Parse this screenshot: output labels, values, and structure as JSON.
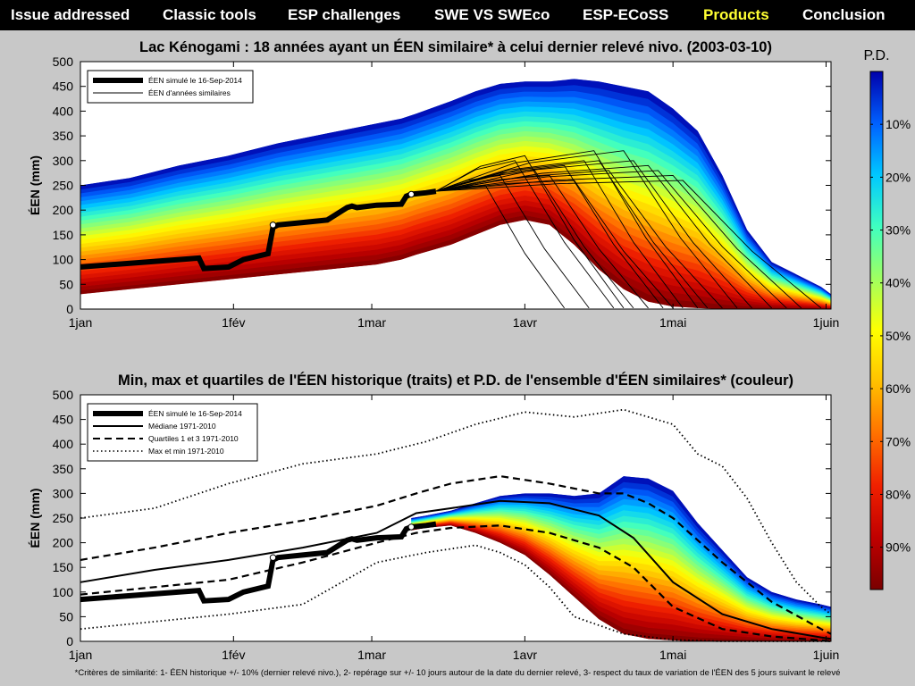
{
  "nav": {
    "items": [
      {
        "label": "Issue addressed"
      },
      {
        "label": "Classic tools"
      },
      {
        "label": "ESP challenges"
      },
      {
        "label": "SWE VS SWEco"
      },
      {
        "label": "ESP-ECoSS"
      },
      {
        "label": "Products"
      },
      {
        "label": "Conclusion"
      }
    ],
    "active_color": "#ffff33",
    "text_color": "#ffffff"
  },
  "footnote": "*Critères de similarité: 1- ÉEN historique +/- 10% (dernier relevé nivo.), 2- repérage sur +/- 10 jours autour de la date du dernier relevé, 3- respect du taux de variation de l'ÉEN des 5 jours suivant le relevé",
  "colorbar": {
    "title": "P.D.",
    "ticks": [
      "10%",
      "20%",
      "30%",
      "40%",
      "50%",
      "60%",
      "70%",
      "80%",
      "90%"
    ],
    "colors": [
      "#0000aa",
      "#0060ff",
      "#00c8ff",
      "#40ffc0",
      "#a0ff60",
      "#ffff00",
      "#ffc000",
      "#ff7000",
      "#f02000",
      "#c00000",
      "#7a0000"
    ]
  },
  "chart_data": [
    {
      "type": "area",
      "title": "Lac Kénogami : 18 années ayant un ÉEN similaire* à celui dernier relevé nivo. (2003-03-10)",
      "ylabel": "ÉEN (mm)",
      "xlabel": "",
      "ylim": [
        0,
        500
      ],
      "yticks": [
        0,
        50,
        100,
        150,
        200,
        250,
        300,
        350,
        400,
        450,
        500
      ],
      "xlim": [
        0,
        152
      ],
      "xticks": [
        {
          "d": 0,
          "label": "1jan"
        },
        {
          "d": 31,
          "label": "1fév"
        },
        {
          "d": 59,
          "label": "1mar"
        },
        {
          "d": 90,
          "label": "1avr"
        },
        {
          "d": 120,
          "label": "1mai"
        },
        {
          "d": 151,
          "label": "1juin"
        }
      ],
      "grid": false,
      "legend": {
        "position": "top-left",
        "entries": [
          "ÉEN simulé le 16-Sep-2014",
          "ÉEN d'années similaires"
        ]
      },
      "band_envelope": {
        "x": [
          0,
          10,
          20,
          30,
          40,
          50,
          60,
          65,
          68,
          75,
          80,
          85,
          90,
          95,
          100,
          105,
          110,
          115,
          120,
          125,
          130,
          135,
          140,
          145,
          150,
          152
        ],
        "low": [
          30,
          40,
          50,
          60,
          70,
          80,
          90,
          100,
          110,
          130,
          150,
          170,
          180,
          170,
          130,
          80,
          40,
          15,
          5,
          2,
          0,
          0,
          0,
          0,
          0,
          0
        ],
        "high": [
          250,
          265,
          290,
          310,
          335,
          355,
          375,
          385,
          395,
          420,
          440,
          455,
          460,
          460,
          465,
          460,
          450,
          440,
          405,
          360,
          270,
          160,
          95,
          70,
          45,
          30
        ]
      },
      "simulated": {
        "x": [
          0,
          20,
          24,
          25,
          30,
          33,
          38,
          39,
          40,
          45,
          50,
          54,
          55,
          56,
          60,
          65,
          66,
          67,
          70,
          72
        ],
        "y": [
          85,
          100,
          103,
          82,
          85,
          100,
          112,
          165,
          170,
          175,
          180,
          205,
          208,
          205,
          210,
          212,
          228,
          232,
          235,
          238
        ],
        "markers": [
          {
            "x": 39,
            "y": 170
          },
          {
            "x": 67,
            "y": 232
          }
        ]
      },
      "similar_years": [
        {
          "peak_x": 82,
          "peak_y": 250,
          "end_x": 98
        },
        {
          "peak_x": 85,
          "peak_y": 270,
          "end_x": 103
        },
        {
          "peak_x": 88,
          "peak_y": 300,
          "end_x": 108
        },
        {
          "peak_x": 90,
          "peak_y": 310,
          "end_x": 110
        },
        {
          "peak_x": 92,
          "peak_y": 280,
          "end_x": 112
        },
        {
          "peak_x": 95,
          "peak_y": 270,
          "end_x": 115
        },
        {
          "peak_x": 98,
          "peak_y": 290,
          "end_x": 118
        },
        {
          "peak_x": 100,
          "peak_y": 260,
          "end_x": 120
        },
        {
          "peak_x": 102,
          "peak_y": 300,
          "end_x": 122
        },
        {
          "peak_x": 104,
          "peak_y": 320,
          "end_x": 125
        },
        {
          "peak_x": 105,
          "peak_y": 300,
          "end_x": 127
        },
        {
          "peak_x": 107,
          "peak_y": 280,
          "end_x": 130
        },
        {
          "peak_x": 110,
          "peak_y": 320,
          "end_x": 133
        },
        {
          "peak_x": 112,
          "peak_y": 300,
          "end_x": 136
        },
        {
          "peak_x": 115,
          "peak_y": 290,
          "end_x": 140
        },
        {
          "peak_x": 117,
          "peak_y": 280,
          "end_x": 143
        },
        {
          "peak_x": 120,
          "peak_y": 270,
          "end_x": 146
        },
        {
          "peak_x": 122,
          "peak_y": 260,
          "end_x": 150
        }
      ]
    },
    {
      "type": "area",
      "title": "Min, max et quartiles de l'ÉEN historique (traits) et P.D. de l'ensemble d'ÉEN similaires* (couleur)",
      "ylabel": "ÉEN (mm)",
      "xlabel": "",
      "ylim": [
        0,
        500
      ],
      "yticks": [
        0,
        50,
        100,
        150,
        200,
        250,
        300,
        350,
        400,
        450,
        500
      ],
      "xlim": [
        0,
        152
      ],
      "xticks": [
        {
          "d": 0,
          "label": "1jan"
        },
        {
          "d": 31,
          "label": "1fév"
        },
        {
          "d": 59,
          "label": "1mar"
        },
        {
          "d": 90,
          "label": "1avr"
        },
        {
          "d": 120,
          "label": "1mai"
        },
        {
          "d": 151,
          "label": "1juin"
        }
      ],
      "grid": false,
      "legend": {
        "position": "top-left",
        "entries": [
          "ÉEN simulé le 16-Sep-2014",
          "Médiane 1971-2010",
          "Quartiles 1 et 3 1971-2010",
          "Max et min 1971-2010"
        ]
      },
      "band_envelope": {
        "x": [
          67,
          70,
          75,
          80,
          85,
          90,
          95,
          100,
          105,
          110,
          115,
          120,
          125,
          130,
          135,
          140,
          145,
          150,
          152
        ],
        "low": [
          225,
          230,
          235,
          220,
          200,
          175,
          135,
          90,
          45,
          15,
          5,
          2,
          0,
          0,
          0,
          0,
          0,
          0,
          0
        ],
        "high": [
          250,
          255,
          265,
          280,
          295,
          300,
          300,
          295,
          300,
          335,
          330,
          305,
          240,
          185,
          130,
          100,
          85,
          75,
          70
        ]
      },
      "simulated": {
        "x": [
          0,
          20,
          24,
          25,
          30,
          33,
          38,
          39,
          40,
          45,
          50,
          54,
          55,
          56,
          60,
          65,
          66,
          67,
          70,
          72
        ],
        "y": [
          85,
          100,
          103,
          82,
          85,
          100,
          112,
          165,
          170,
          175,
          180,
          205,
          208,
          205,
          210,
          212,
          228,
          232,
          235,
          238
        ],
        "markers": [
          {
            "x": 39,
            "y": 170
          },
          {
            "x": 67,
            "y": 232
          }
        ]
      },
      "median": {
        "x": [
          0,
          15,
          30,
          45,
          60,
          68,
          75,
          85,
          95,
          105,
          112,
          120,
          130,
          140,
          150,
          152
        ],
        "y": [
          120,
          145,
          165,
          190,
          220,
          260,
          270,
          285,
          280,
          255,
          210,
          120,
          55,
          25,
          8,
          5
        ]
      },
      "q1": {
        "x": [
          0,
          15,
          30,
          45,
          60,
          68,
          75,
          85,
          95,
          105,
          112,
          120,
          130,
          140,
          150,
          152
        ],
        "y": [
          95,
          110,
          125,
          160,
          200,
          220,
          230,
          235,
          220,
          190,
          150,
          70,
          25,
          10,
          2,
          0
        ]
      },
      "q3": {
        "x": [
          0,
          15,
          30,
          45,
          60,
          68,
          75,
          85,
          95,
          105,
          110,
          115,
          120,
          130,
          140,
          150,
          152
        ],
        "y": [
          165,
          190,
          220,
          245,
          275,
          300,
          320,
          335,
          320,
          300,
          300,
          280,
          250,
          160,
          80,
          25,
          15
        ]
      },
      "max": {
        "x": [
          0,
          15,
          30,
          45,
          60,
          70,
          80,
          90,
          100,
          110,
          120,
          125,
          130,
          135,
          140,
          145,
          150,
          152
        ],
        "y": [
          250,
          270,
          320,
          360,
          380,
          405,
          440,
          465,
          455,
          470,
          440,
          380,
          355,
          290,
          200,
          120,
          70,
          55
        ]
      },
      "min": {
        "x": [
          0,
          15,
          30,
          45,
          60,
          70,
          80,
          85,
          90,
          95,
          100,
          110,
          120,
          130,
          140,
          150,
          152
        ],
        "y": [
          25,
          40,
          55,
          75,
          160,
          180,
          195,
          180,
          155,
          110,
          50,
          15,
          3,
          0,
          0,
          0,
          0
        ]
      }
    }
  ]
}
